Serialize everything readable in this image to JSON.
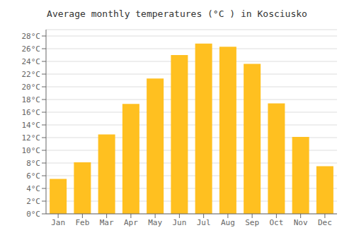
{
  "chart_data": {
    "type": "bar",
    "title": "Average monthly temperatures (°C ) in Kosciusko",
    "categories": [
      "Jan",
      "Feb",
      "Mar",
      "Apr",
      "May",
      "Jun",
      "Jul",
      "Aug",
      "Sep",
      "Oct",
      "Nov",
      "Dec"
    ],
    "values": [
      5.5,
      8.1,
      12.5,
      17.3,
      21.3,
      25.0,
      26.8,
      26.3,
      23.6,
      17.4,
      12.1,
      7.5
    ],
    "color": "#FFC020",
    "ylim": [
      0,
      29
    ],
    "yticks": [
      {
        "value": 0,
        "label": "0°C"
      },
      {
        "value": 2,
        "label": "2°C"
      },
      {
        "value": 4,
        "label": "4°C"
      },
      {
        "value": 6,
        "label": "6°C"
      },
      {
        "value": 8,
        "label": "8°C"
      },
      {
        "value": 10,
        "label": "10°C"
      },
      {
        "value": 12,
        "label": "12°C"
      },
      {
        "value": 14,
        "label": "14°C"
      },
      {
        "value": 16,
        "label": "16°C"
      },
      {
        "value": 18,
        "label": "18°C"
      },
      {
        "value": 20,
        "label": "20°C"
      },
      {
        "value": 22,
        "label": "22°C"
      },
      {
        "value": 24,
        "label": "24°C"
      },
      {
        "value": 26,
        "label": "26°C"
      },
      {
        "value": 28,
        "label": "28°C"
      }
    ],
    "grid": true
  }
}
